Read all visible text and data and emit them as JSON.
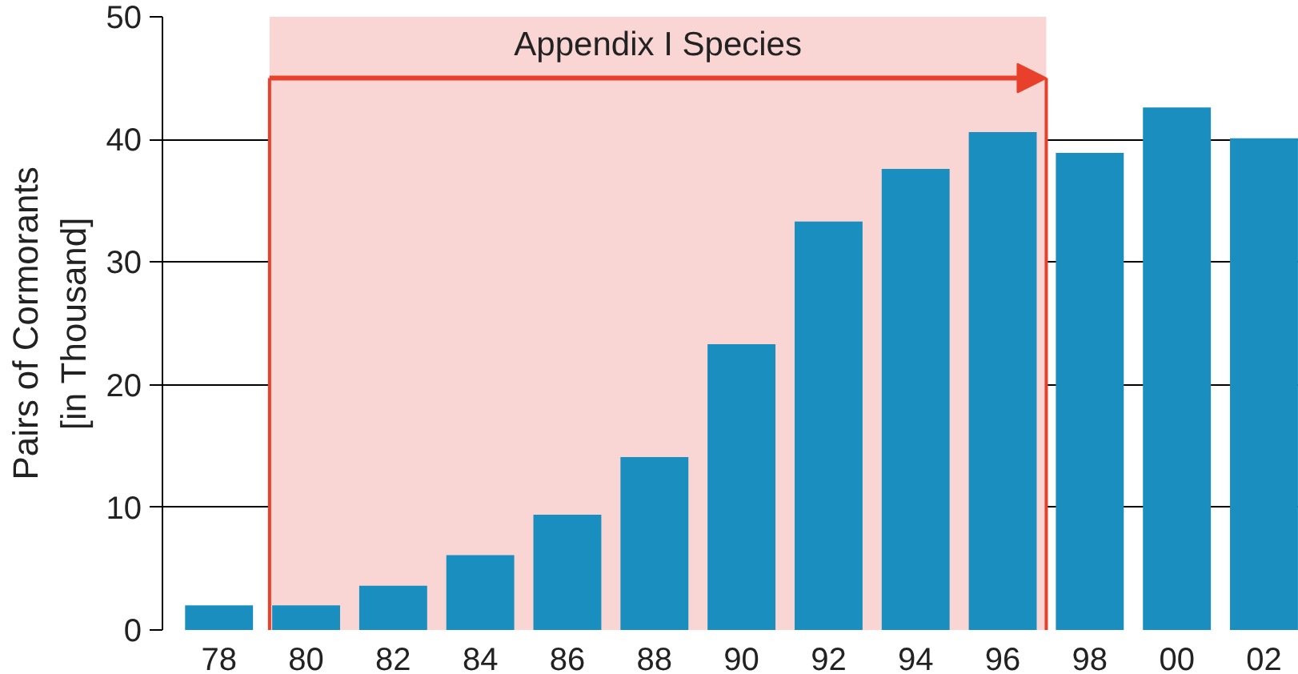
{
  "chart_data": {
    "type": "bar",
    "ylabel": "Pairs of Cormorants\n[in Thousand]",
    "categories": [
      "78",
      "80",
      "82",
      "84",
      "86",
      "88",
      "90",
      "92",
      "94",
      "96",
      "98",
      "00",
      "02"
    ],
    "values": [
      2.0,
      2.0,
      3.6,
      6.1,
      9.4,
      14.1,
      23.3,
      33.3,
      37.6,
      40.6,
      38.9,
      42.6,
      40.1
    ],
    "color": "#1a8fbf",
    "ylim": [
      0,
      50
    ],
    "yticks": [
      0,
      10,
      20,
      30,
      40,
      50
    ],
    "grid": "y",
    "bands": [
      {
        "axis": "x",
        "from": "80",
        "to": "96",
        "label": "Appendix I Species",
        "color": "#f9d5d3"
      }
    ]
  }
}
